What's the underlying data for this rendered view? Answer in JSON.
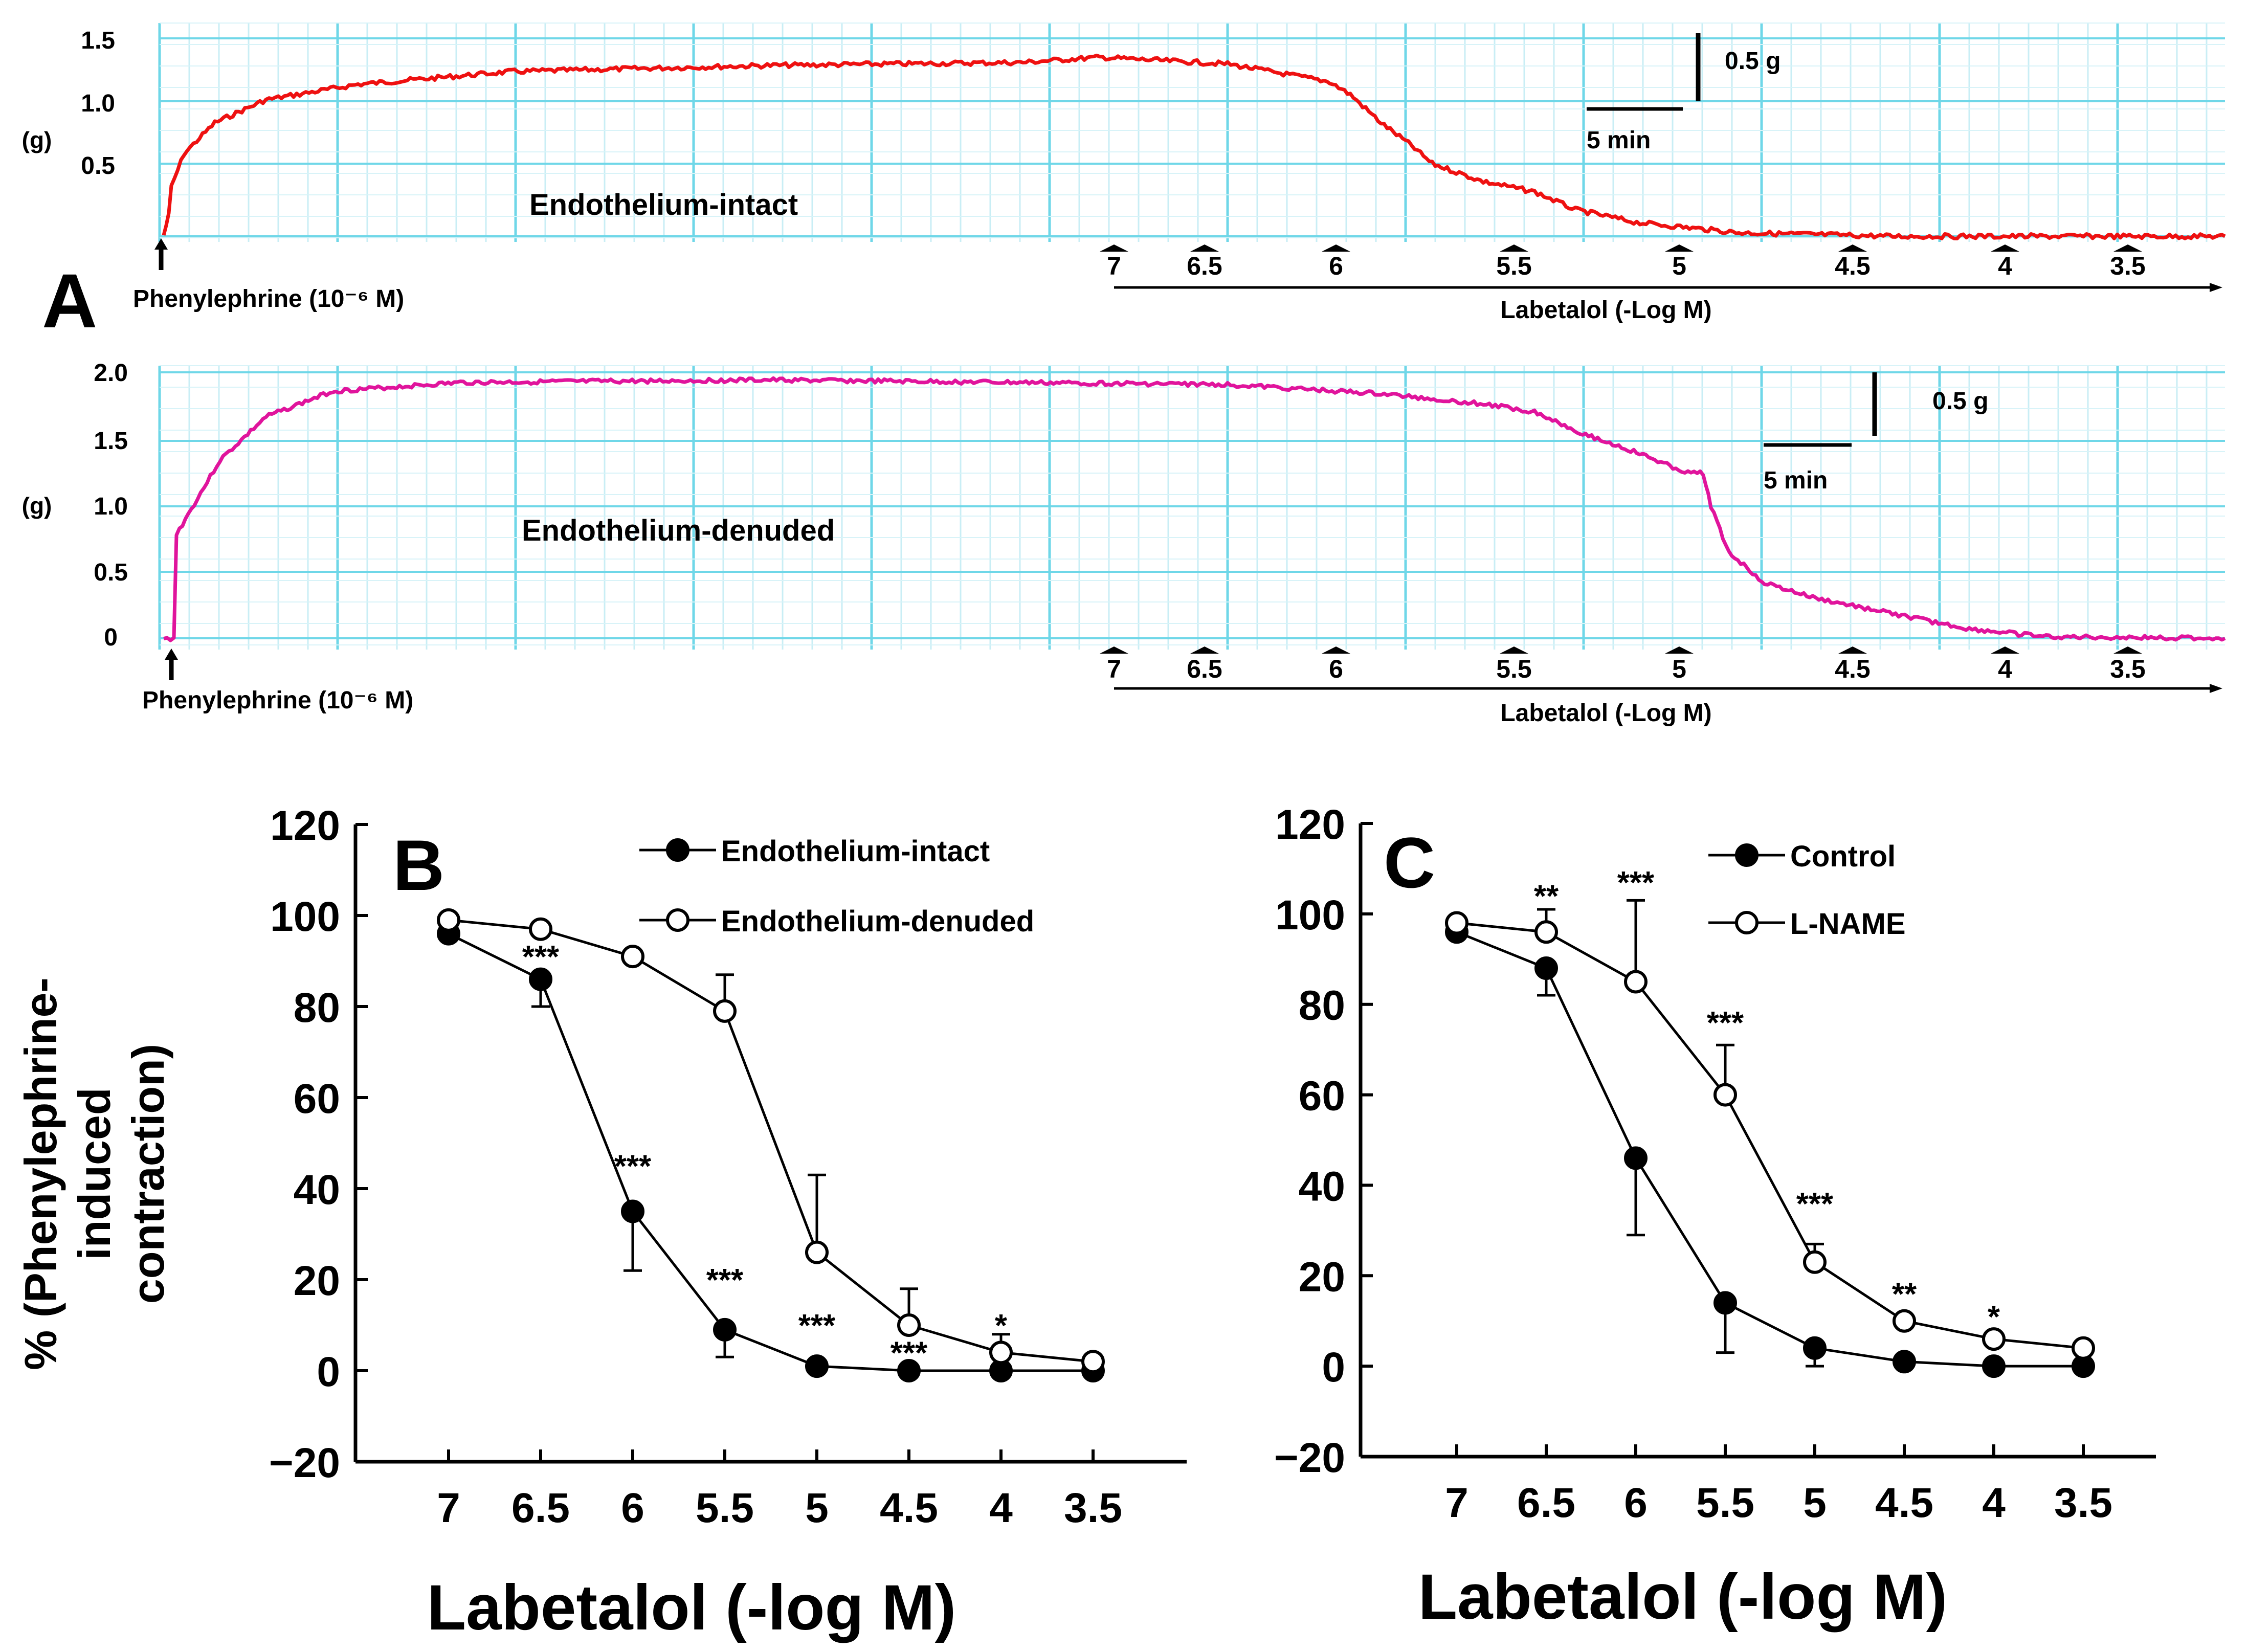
{
  "panels": {
    "a": {
      "letter": "A"
    },
    "b": {
      "letter": "B"
    },
    "c": {
      "letter": "C"
    }
  },
  "trace_top": {
    "y_unit": "(g)",
    "y_ticks": [
      "1.5",
      "1.0",
      "0.5"
    ],
    "label": "Endothelium-intact",
    "agonist": "Phenylephrine  (10⁻⁶ M)",
    "drug": "Labetalol (-Log M)",
    "doses": [
      "7",
      "6.5",
      "6",
      "5.5",
      "5",
      "4.5",
      "4",
      "3.5"
    ],
    "scale_force": "0.5 g",
    "scale_time": "5 min",
    "color": "#ee1111"
  },
  "trace_bottom": {
    "y_unit": "(g)",
    "y_ticks": [
      "2.0",
      "1.5",
      "1.0",
      "0.5",
      "0"
    ],
    "label": "Endothelium-denuded",
    "agonist": "Phenylephrine  (10⁻⁶ M)",
    "drug": "Labetalol (-Log M)",
    "doses": [
      "7",
      "6.5",
      "6",
      "5.5",
      "5",
      "4.5",
      "4",
      "3.5"
    ],
    "scale_force": "0.5 g",
    "scale_time": "5 min",
    "color": "#e0149c"
  },
  "shared_ylabel": {
    "line1": "% (Phenylephrine-",
    "line2": "induced",
    "line3": "contraction)"
  },
  "chart_data": [
    {
      "type": "line",
      "panel": "B",
      "xlabel": "Labetalol (-log M)",
      "ylabel": "% (Phenylephrine-induced contraction)",
      "categories": [
        "7",
        "6.5",
        "6",
        "5.5",
        "5",
        "4.5",
        "4",
        "3.5"
      ],
      "y_ticks": [
        "120",
        "100",
        "80",
        "60",
        "40",
        "20",
        "0",
        "−20"
      ],
      "ylim": [
        -20,
        120
      ],
      "series": [
        {
          "name": "Endothelium-intact",
          "marker": "filled",
          "values": [
            96,
            86,
            35,
            9,
            1,
            0,
            0,
            0
          ],
          "err": [
            0,
            6,
            13,
            6,
            0,
            0,
            0,
            0
          ]
        },
        {
          "name": "Endothelium-denuded",
          "marker": "open",
          "values": [
            99,
            97,
            91,
            79,
            26,
            10,
            4,
            2
          ],
          "err": [
            0,
            0,
            0,
            8,
            17,
            8,
            4,
            0
          ]
        }
      ],
      "annotations": [
        {
          "x": "6.5",
          "y": 91,
          "text": "***"
        },
        {
          "x": "6",
          "y": 45,
          "text": "***"
        },
        {
          "x": "5.5",
          "y": 20,
          "text": "***"
        },
        {
          "x": "5",
          "y": 10,
          "text": "***"
        },
        {
          "x": "4.5",
          "y": 4,
          "text": "***"
        },
        {
          "x": "4",
          "y": 10,
          "text": "*"
        }
      ]
    },
    {
      "type": "line",
      "panel": "C",
      "xlabel": "Labetalol (-log M)",
      "ylabel": "% (Phenylephrine-induced contraction)",
      "categories": [
        "7",
        "6.5",
        "6",
        "5.5",
        "5",
        "4.5",
        "4",
        "3.5"
      ],
      "y_ticks": [
        "120",
        "100",
        "80",
        "60",
        "40",
        "20",
        "0",
        "−20"
      ],
      "ylim": [
        -20,
        120
      ],
      "series": [
        {
          "name": "Control",
          "marker": "filled",
          "values": [
            96,
            88,
            46,
            14,
            4,
            1,
            0,
            0
          ],
          "err": [
            0,
            6,
            17,
            11,
            4,
            0,
            0,
            0
          ]
        },
        {
          "name": "L-NAME",
          "marker": "open",
          "values": [
            98,
            96,
            85,
            60,
            23,
            10,
            6,
            4
          ],
          "err": [
            0,
            5,
            18,
            11,
            4,
            0,
            0,
            0
          ]
        }
      ],
      "annotations": [
        {
          "x": "6.5",
          "y": 104,
          "text": "**"
        },
        {
          "x": "6",
          "y": 107,
          "text": "***"
        },
        {
          "x": "5.5",
          "y": 76,
          "text": "***"
        },
        {
          "x": "5",
          "y": 36,
          "text": "***"
        },
        {
          "x": "4.5",
          "y": 16,
          "text": "**"
        },
        {
          "x": "4",
          "y": 11,
          "text": "*"
        }
      ]
    }
  ]
}
